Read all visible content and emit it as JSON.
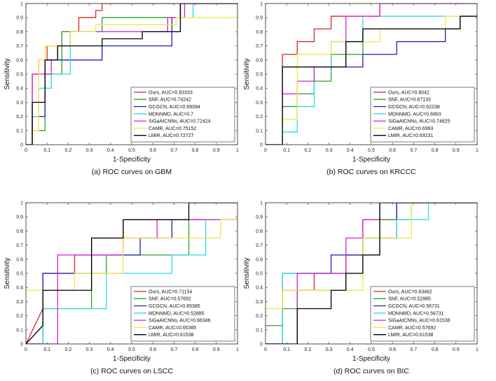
{
  "figure": {
    "series_colors": {
      "Ours": "#d62728",
      "SNF": "#2ca02c",
      "GCGCN": "#1f1fb4",
      "MDNNMD": "#2fd9e8",
      "SiGaAtCNNs": "#d61fd6",
      "CAMR": "#f5e642",
      "LMIR": "#000000"
    }
  },
  "chart_data": [
    {
      "type": "line",
      "caption": "(a) ROC curves on GBM",
      "xlabel": "1-Specificity",
      "ylabel": "Sensitivity",
      "xlim": [
        0,
        1
      ],
      "ylim": [
        0,
        1
      ],
      "xticks": [
        "0",
        "0.1",
        "0.2",
        "0.3",
        "0.4",
        "0.5",
        "0.6",
        "0.7",
        "0.8",
        "0.9",
        "1"
      ],
      "yticks": [
        "0",
        "0.1",
        "0.2",
        "0.3",
        "0.4",
        "0.5",
        "0.6",
        "0.7",
        "0.8",
        "0.9",
        "1"
      ],
      "legend_position": "lower-right",
      "series": [
        {
          "name": "Ours",
          "legend": "Ours, AUC=0.83333",
          "x": [
            0,
            0.03,
            0.03,
            0.06,
            0.06,
            0.1,
            0.1,
            0.17,
            0.17,
            0.25,
            0.25,
            0.33,
            0.33,
            0.36,
            0.36,
            1
          ],
          "y": [
            0,
            0,
            0.5,
            0.5,
            0.6,
            0.6,
            0.7,
            0.7,
            0.8,
            0.8,
            0.9,
            0.9,
            0.95,
            0.95,
            1,
            1
          ]
        },
        {
          "name": "SNF",
          "legend": "SNF, AUC=0.74242",
          "x": [
            0,
            0.03,
            0.03,
            0.09,
            0.09,
            0.17,
            0.17,
            0.36,
            0.36,
            0.73,
            0.73,
            1
          ],
          "y": [
            0,
            0,
            0.1,
            0.1,
            0.5,
            0.5,
            0.8,
            0.8,
            0.9,
            0.9,
            1,
            1
          ]
        },
        {
          "name": "GCGCN",
          "legend": "GCGCN, AUC=0.69394",
          "x": [
            0,
            0.03,
            0.03,
            0.09,
            0.09,
            0.36,
            0.36,
            0.69,
            0.69,
            0.73,
            0.73,
            1
          ],
          "y": [
            0,
            0,
            0.2,
            0.2,
            0.6,
            0.6,
            0.7,
            0.7,
            0.9,
            0.9,
            1,
            1
          ]
        },
        {
          "name": "MDNNMD",
          "legend": "MDNNMD, AUC=0.7",
          "x": [
            0,
            0.03,
            0.03,
            0.06,
            0.06,
            0.12,
            0.12,
            0.21,
            0.21,
            0.73,
            0.73,
            0.79,
            0.79,
            1
          ],
          "y": [
            0,
            0,
            0.2,
            0.2,
            0.4,
            0.4,
            0.5,
            0.5,
            0.8,
            0.8,
            0.9,
            0.9,
            1,
            1
          ]
        },
        {
          "name": "SiGaAtCNNs",
          "legend": "SiGaAtCNNs, AUC=0.72424",
          "x": [
            0,
            0.03,
            0.03,
            0.12,
            0.12,
            0.15,
            0.15,
            0.21,
            0.21,
            0.67,
            0.67,
            0.75,
            0.75,
            1
          ],
          "y": [
            0,
            0,
            0.5,
            0.5,
            0.6,
            0.6,
            0.7,
            0.7,
            0.8,
            0.8,
            0.9,
            0.9,
            1,
            1
          ]
        },
        {
          "name": "CAMR",
          "legend": "CAMR, AUC=0.75152",
          "x": [
            0,
            0.03,
            0.03,
            0.06,
            0.06,
            0.09,
            0.09,
            0.21,
            0.21,
            0.33,
            0.33,
            0.71,
            0.71,
            0.73,
            0.73,
            1
          ],
          "y": [
            0,
            0,
            0.1,
            0.1,
            0.6,
            0.6,
            0.7,
            0.7,
            0.8,
            0.8,
            0.85,
            0.85,
            0.9,
            0.9,
            0.9,
            0.9
          ]
        },
        {
          "name": "LMIR",
          "legend": "LMIR, AUC=0.72727",
          "x": [
            0,
            0.03,
            0.03,
            0.09,
            0.09,
            0.15,
            0.15,
            0.36,
            0.36,
            0.55,
            0.55,
            0.73,
            0.73,
            1
          ],
          "y": [
            0,
            0,
            0.3,
            0.3,
            0.6,
            0.6,
            0.7,
            0.7,
            0.75,
            0.75,
            0.8,
            0.8,
            1,
            1
          ]
        }
      ]
    },
    {
      "type": "line",
      "caption": "(b) ROC curves on KRCCC",
      "xlabel": "1-Specificity",
      "ylabel": "Sensitivity",
      "xlim": [
        0,
        1
      ],
      "ylim": [
        0,
        1
      ],
      "xticks": [
        "0",
        "0.1",
        "0.2",
        "0.3",
        "0.4",
        "0.5",
        "0.6",
        "0.7",
        "0.8",
        "0.9",
        "1"
      ],
      "yticks": [
        "0",
        "0.1",
        "0.2",
        "0.3",
        "0.4",
        "0.5",
        "0.6",
        "0.7",
        "0.8",
        "0.9",
        "1"
      ],
      "legend_position": "lower-right",
      "series": [
        {
          "name": "Ours",
          "legend": "Ours, AUC=0.8042",
          "x": [
            0,
            0.08,
            0.08,
            0.15,
            0.15,
            0.23,
            0.23,
            0.31,
            0.31,
            0.54,
            0.54,
            1
          ],
          "y": [
            0,
            0,
            0.64,
            0.64,
            0.73,
            0.73,
            0.82,
            0.82,
            0.91,
            0.91,
            1,
            1
          ]
        },
        {
          "name": "SNF",
          "legend": "SNF, AUC=0.67133",
          "x": [
            0,
            0.08,
            0.08,
            0.15,
            0.15,
            0.23,
            0.23,
            0.31,
            0.31,
            0.46,
            0.46,
            0.92,
            0.92,
            1
          ],
          "y": [
            0,
            0,
            0.27,
            0.27,
            0.36,
            0.36,
            0.45,
            0.45,
            0.64,
            0.64,
            0.82,
            0.82,
            0.91,
            0.91
          ]
        },
        {
          "name": "GCGCN",
          "legend": "GCGCN, AUC=0.62238",
          "x": [
            0,
            0.08,
            0.08,
            0.38,
            0.38,
            0.46,
            0.46,
            0.62,
            0.62,
            0.85,
            0.85,
            0.92,
            0.92,
            1
          ],
          "y": [
            0,
            0,
            0.55,
            0.55,
            0.55,
            0.55,
            0.64,
            0.64,
            0.73,
            0.73,
            0.82,
            0.82,
            0.91,
            0.91
          ]
        },
        {
          "name": "MDNNMD",
          "legend": "MDNNMD, AUC=0.6993",
          "x": [
            0,
            0.08,
            0.08,
            0.15,
            0.15,
            0.23,
            0.23,
            0.31,
            0.31,
            0.46,
            0.46,
            0.92,
            0.92,
            1
          ],
          "y": [
            0,
            0,
            0.09,
            0.09,
            0.27,
            0.27,
            0.55,
            0.55,
            0.73,
            0.73,
            0.91,
            0.91,
            0.91,
            0.91
          ]
        },
        {
          "name": "SiGaAtCNNs",
          "legend": "SiGaAtCNNs, AUC=0.74825",
          "x": [
            0,
            0.08,
            0.08,
            0.15,
            0.15,
            0.23,
            0.23,
            0.38,
            0.38,
            0.54,
            0.54,
            1
          ],
          "y": [
            0,
            0,
            0.36,
            0.36,
            0.45,
            0.45,
            0.55,
            0.55,
            0.91,
            0.91,
            1,
            1
          ]
        },
        {
          "name": "CAMR",
          "legend": "CAMR, AUC=0.6993",
          "x": [
            0,
            0.08,
            0.08,
            0.15,
            0.15,
            0.31,
            0.31,
            0.54,
            0.54,
            0.85,
            0.85,
            1
          ],
          "y": [
            0,
            0,
            0.18,
            0.18,
            0.64,
            0.64,
            0.73,
            0.73,
            0.82,
            0.82,
            0.91,
            0.91
          ]
        },
        {
          "name": "LMIR",
          "legend": "LMIR, AUC=0.69231",
          "x": [
            0,
            0.08,
            0.08,
            0.38,
            0.38,
            0.46,
            0.46,
            0.92,
            0.92,
            1
          ],
          "y": [
            0,
            0,
            0.55,
            0.55,
            0.73,
            0.73,
            0.82,
            0.82,
            0.91,
            0.91
          ]
        }
      ]
    },
    {
      "type": "line",
      "caption": "(c) ROC curves on LSCC",
      "xlabel": "1-Specificity",
      "ylabel": "Sensitivity",
      "xlim": [
        0,
        1
      ],
      "ylim": [
        0,
        1
      ],
      "xticks": [
        "0",
        "0.1",
        "0.2",
        "0.3",
        "0.4",
        "0.5",
        "0.6",
        "0.7",
        "0.8",
        "0.9",
        "1"
      ],
      "yticks": [
        "0",
        "0.1",
        "0.2",
        "0.3",
        "0.4",
        "0.5",
        "0.6",
        "0.7",
        "0.8",
        "0.9",
        "1"
      ],
      "legend_position": "lower-right",
      "series": [
        {
          "name": "Ours",
          "legend": "Ours, AUC=0.71154",
          "x": [
            0,
            0.08,
            0.08,
            0.23,
            0.23,
            0.31,
            0.31,
            0.46,
            0.46,
            1
          ],
          "y": [
            0,
            0.25,
            0.5,
            0.5,
            0.63,
            0.63,
            0.75,
            0.75,
            0.88,
            0.88
          ]
        },
        {
          "name": "SNF",
          "legend": "SNF, AUC=0.57692",
          "x": [
            0,
            0.08,
            0.08,
            0.15,
            0.15,
            0.31,
            0.31,
            0.38,
            0.38,
            0.77,
            0.77,
            1
          ],
          "y": [
            0,
            0,
            0.25,
            0.25,
            0.25,
            0.25,
            0.5,
            0.5,
            0.63,
            0.63,
            0.88,
            0.88
          ]
        },
        {
          "name": "GCGCN",
          "legend": "GCGCN, AUC=0.65385",
          "x": [
            0,
            0.08,
            0.08,
            0.31,
            0.31,
            0.54,
            0.54,
            0.69,
            0.69,
            1
          ],
          "y": [
            0,
            0,
            0.5,
            0.5,
            0.63,
            0.63,
            0.75,
            0.75,
            0.88,
            0.88
          ]
        },
        {
          "name": "MDNNMD",
          "legend": "MDNNMD, AUC=0.52885",
          "x": [
            0,
            0.08,
            0.08,
            0.38,
            0.38,
            0.69,
            0.69,
            0.85,
            0.85,
            1
          ],
          "y": [
            0,
            0,
            0.25,
            0.25,
            0.5,
            0.5,
            0.63,
            0.63,
            0.88,
            0.88
          ]
        },
        {
          "name": "SiGaAtCNNs",
          "legend": "SiGaAtCNNs, AUC=0.66346",
          "x": [
            0,
            0.15,
            0.15,
            0.31,
            0.31,
            0.46,
            0.46,
            0.62,
            0.62,
            1
          ],
          "y": [
            0,
            0,
            0.63,
            0.63,
            0.63,
            0.63,
            0.75,
            0.75,
            0.88,
            0.88
          ]
        },
        {
          "name": "CAMR",
          "legend": "CAMR, AUC=0.65385",
          "x": [
            0,
            0.08,
            0.08,
            0.23,
            0.23,
            0.46,
            0.46,
            0.92,
            0.92,
            1
          ],
          "y": [
            0.38,
            0.38,
            0.38,
            0.38,
            0.5,
            0.5,
            0.75,
            0.75,
            0.88,
            0.88
          ]
        },
        {
          "name": "LMIR",
          "legend": "LMIR, AUC=0.61538",
          "x": [
            0,
            0.08,
            0.08,
            0.23,
            0.23,
            0.31,
            0.31,
            0.46,
            0.46,
            0.77,
            0.77,
            1
          ],
          "y": [
            0,
            0.13,
            0.38,
            0.38,
            0.38,
            0.38,
            0.75,
            0.75,
            0.88,
            0.88,
            1,
            1
          ]
        }
      ]
    },
    {
      "type": "line",
      "caption": "(d) ROC curves on BIC",
      "xlabel": "1-Specificity",
      "ylabel": "Sensitivity",
      "xlim": [
        0,
        1
      ],
      "ylim": [
        0,
        1
      ],
      "xticks": [
        "0",
        "0.1",
        "0.2",
        "0.3",
        "0.4",
        "0.5",
        "0.6",
        "0.7",
        "0.8",
        "0.9",
        "1"
      ],
      "yticks": [
        "0",
        "0.1",
        "0.2",
        "0.3",
        "0.4",
        "0.5",
        "0.6",
        "0.7",
        "0.8",
        "0.9",
        "1"
      ],
      "legend_position": "lower-right",
      "series": [
        {
          "name": "Ours",
          "legend": "Ours, AUC=0.63462",
          "x": [
            0,
            0.08,
            0.08,
            0.23,
            0.23,
            0.38,
            0.38,
            0.46,
            0.46,
            0.62,
            0.62,
            1
          ],
          "y": [
            0,
            0,
            0.38,
            0.38,
            0.5,
            0.5,
            0.63,
            0.63,
            0.88,
            0.88,
            1,
            1
          ]
        },
        {
          "name": "SNF",
          "legend": "SNF, AUC=0.52885",
          "x": [
            0,
            0.08,
            0.08,
            0.15,
            0.15,
            0.38,
            0.38,
            0.54,
            0.54,
            0.69,
            0.69,
            1
          ],
          "y": [
            0.13,
            0.13,
            0.25,
            0.25,
            0.38,
            0.38,
            0.63,
            0.63,
            0.88,
            0.88,
            1,
            1
          ]
        },
        {
          "name": "GCGCN",
          "legend": "GCGCN, AUC=0.56731",
          "x": [
            0,
            0.08,
            0.08,
            0.31,
            0.31,
            0.46,
            0.46,
            0.62,
            0.62,
            1
          ],
          "y": [
            0,
            0,
            0.5,
            0.5,
            0.63,
            0.63,
            0.75,
            0.75,
            1,
            1
          ]
        },
        {
          "name": "MDNNMD",
          "legend": "MDNNMD, AUC=0.56731",
          "x": [
            0,
            0.08,
            0.08,
            0.46,
            0.46,
            0.62,
            0.62,
            0.77,
            0.77,
            1
          ],
          "y": [
            0,
            0,
            0.5,
            0.5,
            0.75,
            0.75,
            0.88,
            0.88,
            1,
            1
          ]
        },
        {
          "name": "SiGaAtCNNs",
          "legend": "SiGaAtCNNs, AUC=0.61538",
          "x": [
            0,
            0.15,
            0.15,
            0.38,
            0.38,
            0.46,
            0.46,
            0.54,
            0.54,
            0.69,
            0.69,
            1
          ],
          "y": [
            0,
            0,
            0.5,
            0.5,
            0.75,
            0.75,
            0.88,
            0.88,
            1,
            1,
            1,
            1
          ]
        },
        {
          "name": "CAMR",
          "legend": "CAMR, AUC=0.57692",
          "x": [
            0,
            0.08,
            0.08,
            0.23,
            0.23,
            0.46,
            0.46,
            0.69,
            0.69,
            1
          ],
          "y": [
            0.25,
            0.25,
            0.38,
            0.38,
            0.38,
            0.38,
            0.75,
            0.75,
            1,
            1
          ]
        },
        {
          "name": "LMIR",
          "legend": "LMIR, AUC=0.61538",
          "x": [
            0,
            0.15,
            0.15,
            0.31,
            0.31,
            0.38,
            0.38,
            0.46,
            0.46,
            0.54,
            0.54,
            1
          ],
          "y": [
            0,
            0,
            0.25,
            0.25,
            0.38,
            0.38,
            0.5,
            0.5,
            0.63,
            0.63,
            1,
            1
          ]
        }
      ]
    }
  ]
}
